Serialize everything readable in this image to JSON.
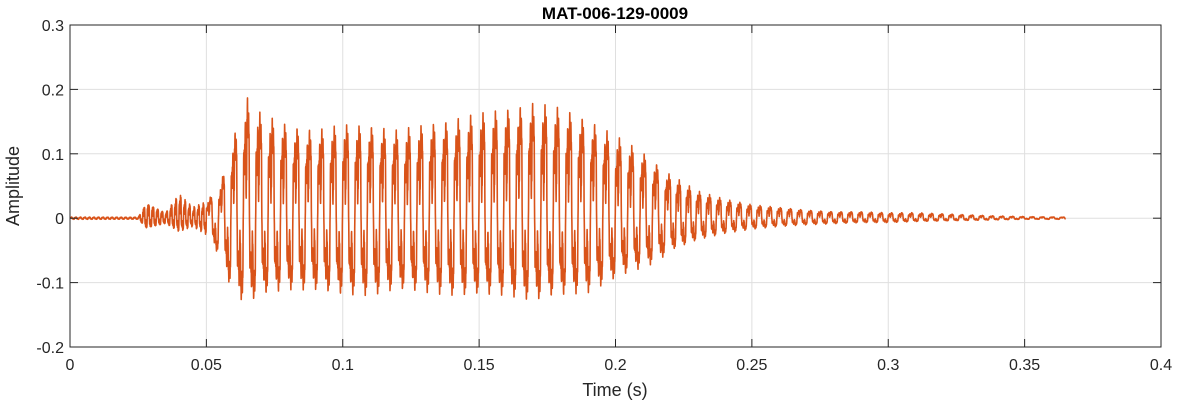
{
  "chart_data": {
    "type": "line",
    "title": "MAT-006-129-0009",
    "xlabel": "Time (s)",
    "ylabel": "Amplitude",
    "xlim": [
      0,
      0.4
    ],
    "ylim": [
      -0.2,
      0.3
    ],
    "xticks": [
      0,
      0.05,
      0.1,
      0.15,
      0.2,
      0.25,
      0.3,
      0.35,
      0.4
    ],
    "xtick_labels": [
      "0",
      "0.05",
      "0.1",
      "0.15",
      "0.2",
      "0.25",
      "0.3",
      "0.35",
      "0.4"
    ],
    "yticks": [
      -0.2,
      -0.1,
      0,
      0.1,
      0.2,
      0.3
    ],
    "ytick_labels": [
      "-0.2",
      "-0.1",
      "0",
      "0.1",
      "0.2",
      "0.3"
    ],
    "grid": true,
    "line_color": "#D95319",
    "series": [
      {
        "envelope": {
          "t": [
            0,
            0.025,
            0.028,
            0.035,
            0.04,
            0.045,
            0.05,
            0.055,
            0.06,
            0.065,
            0.07,
            0.08,
            0.09,
            0.1,
            0.11,
            0.12,
            0.13,
            0.14,
            0.15,
            0.16,
            0.17,
            0.18,
            0.19,
            0.2,
            0.21,
            0.215,
            0.22,
            0.23,
            0.24,
            0.25,
            0.26,
            0.27,
            0.28,
            0.29,
            0.3,
            0.31,
            0.32,
            0.33,
            0.34,
            0.35,
            0.365
          ],
          "upper": [
            0.002,
            0.002,
            0.03,
            0.01,
            0.045,
            0.02,
            0.03,
            0.06,
            0.15,
            0.22,
            0.19,
            0.17,
            0.16,
            0.17,
            0.17,
            0.16,
            0.17,
            0.18,
            0.19,
            0.2,
            0.21,
            0.2,
            0.18,
            0.15,
            0.12,
            0.1,
            0.08,
            0.05,
            0.035,
            0.025,
            0.02,
            0.015,
            0.012,
            0.012,
            0.01,
            0.01,
            0.008,
            0.006,
            0.004,
            0.003,
            0.002
          ],
          "lower": [
            -0.002,
            -0.002,
            -0.02,
            -0.01,
            -0.025,
            -0.015,
            -0.03,
            -0.07,
            -0.14,
            -0.155,
            -0.14,
            -0.13,
            -0.13,
            -0.14,
            -0.14,
            -0.13,
            -0.135,
            -0.14,
            -0.14,
            -0.14,
            -0.15,
            -0.14,
            -0.135,
            -0.11,
            -0.09,
            -0.08,
            -0.06,
            -0.04,
            -0.028,
            -0.02,
            -0.015,
            -0.012,
            -0.01,
            -0.008,
            -0.008,
            -0.006,
            -0.005,
            -0.004,
            -0.003,
            -0.002,
            -0.002
          ]
        }
      }
    ]
  }
}
